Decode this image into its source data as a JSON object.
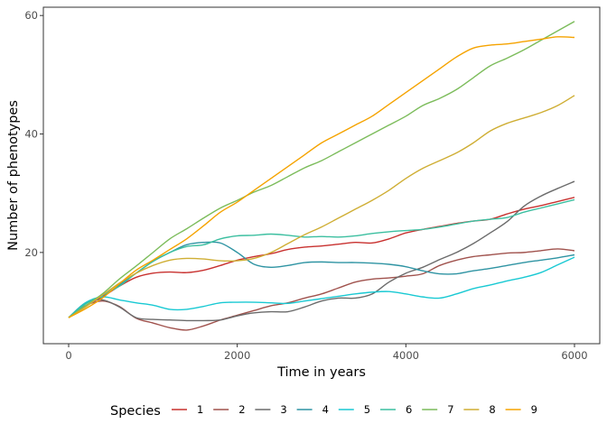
{
  "chart_data": {
    "type": "line",
    "xlabel": "Time in years",
    "ylabel": "Number of phenotypes",
    "xlim": [
      -300,
      6300
    ],
    "ylim": [
      4.6,
      61.4
    ],
    "xticks": [
      0,
      2000,
      4000,
      6000
    ],
    "yticks": [
      20,
      40,
      60
    ],
    "xtick_labels": [
      "0",
      "2000",
      "4000",
      "6000"
    ],
    "ytick_labels": [
      "20",
      "40",
      "60"
    ],
    "grid": false,
    "legend_title": "Species",
    "legend_position": "bottom",
    "x": [
      0,
      200,
      400,
      600,
      800,
      1000,
      1200,
      1400,
      1600,
      1800,
      2000,
      2200,
      2400,
      2600,
      2800,
      3000,
      3200,
      3400,
      3600,
      3800,
      4000,
      4200,
      4400,
      4600,
      4800,
      5000,
      5200,
      5400,
      5600,
      5800,
      6000
    ],
    "series": [
      {
        "name": "1",
        "color": "#c8312f",
        "values": [
          9,
          11,
          12.5,
          14.3,
          15.8,
          16.5,
          16.7,
          16.6,
          17.0,
          17.8,
          18.7,
          19.3,
          19.8,
          20.5,
          20.9,
          21.1,
          21.4,
          21.7,
          21.6,
          22.3,
          23.3,
          23.9,
          24.4,
          24.9,
          25.3,
          25.6,
          26.5,
          27.3,
          27.9,
          28.6,
          29.3
        ]
      },
      {
        "name": "2",
        "color": "#a0524d",
        "values": [
          9,
          11,
          11.8,
          10.9,
          8.9,
          8.1,
          7.3,
          6.9,
          7.6,
          8.6,
          9.4,
          10.2,
          11.0,
          11.5,
          12.3,
          13.0,
          14.0,
          15.0,
          15.5,
          15.7,
          16.0,
          16.4,
          17.8,
          18.7,
          19.3,
          19.6,
          19.9,
          20.0,
          20.3,
          20.6,
          20.3
        ]
      },
      {
        "name": "3",
        "color": "#6b6b6b",
        "values": [
          9,
          11.5,
          12.0,
          10.8,
          9.0,
          8.7,
          8.6,
          8.5,
          8.5,
          8.6,
          9.3,
          9.8,
          10.0,
          10.0,
          10.8,
          11.8,
          12.3,
          12.3,
          13.0,
          15.0,
          16.5,
          17.5,
          18.8,
          20.0,
          21.5,
          23.3,
          25.2,
          27.8,
          29.5,
          30.8,
          32.0
        ]
      },
      {
        "name": "4",
        "color": "#2f94a3",
        "values": [
          9,
          11.5,
          12.7,
          14.5,
          16.5,
          18.5,
          20.0,
          21.3,
          21.7,
          21.6,
          20.0,
          18.0,
          17.5,
          17.8,
          18.3,
          18.4,
          18.3,
          18.3,
          18.2,
          18.0,
          17.6,
          16.9,
          16.4,
          16.4,
          16.9,
          17.3,
          17.8,
          18.3,
          18.7,
          19.1,
          19.6
        ]
      },
      {
        "name": "5",
        "color": "#19c9d3",
        "values": [
          9,
          11.5,
          12.5,
          12.0,
          11.5,
          11.1,
          10.4,
          10.4,
          10.9,
          11.5,
          11.6,
          11.6,
          11.5,
          11.4,
          11.8,
          12.2,
          12.6,
          13.0,
          13.3,
          13.4,
          13.0,
          12.5,
          12.3,
          13.0,
          13.9,
          14.5,
          15.2,
          15.8,
          16.6,
          17.9,
          19.2
        ]
      },
      {
        "name": "6",
        "color": "#3cbfa0",
        "values": [
          9,
          11.3,
          12.8,
          14.3,
          16.5,
          18.5,
          20.0,
          21.0,
          21.3,
          22.3,
          22.8,
          22.9,
          23.1,
          22.9,
          22.6,
          22.7,
          22.6,
          22.8,
          23.2,
          23.5,
          23.7,
          23.9,
          24.3,
          24.8,
          25.3,
          25.6,
          25.9,
          26.8,
          27.5,
          28.2,
          28.9
        ]
      },
      {
        "name": "7",
        "color": "#7cbc5b",
        "values": [
          9,
          11,
          13,
          15.5,
          17.7,
          20.0,
          22.3,
          24.0,
          25.8,
          27.5,
          28.8,
          30.2,
          31.3,
          32.8,
          34.3,
          35.5,
          37.0,
          38.5,
          40.0,
          41.5,
          43.0,
          44.8,
          46.0,
          47.5,
          49.5,
          51.5,
          52.8,
          54.2,
          55.8,
          57.4,
          59.0
        ]
      },
      {
        "name": "8",
        "color": "#cfae34",
        "values": [
          9,
          10.8,
          12.8,
          14.8,
          16.5,
          17.8,
          18.7,
          19.0,
          18.9,
          18.6,
          18.6,
          19.0,
          20.0,
          21.5,
          23.0,
          24.3,
          25.8,
          27.3,
          28.8,
          30.5,
          32.5,
          34.2,
          35.5,
          36.8,
          38.5,
          40.5,
          41.8,
          42.7,
          43.6,
          44.8,
          46.5
        ]
      },
      {
        "name": "9",
        "color": "#f5a300",
        "values": [
          9,
          10.5,
          12.3,
          14.7,
          17.0,
          18.7,
          20.5,
          22.3,
          24.5,
          26.8,
          28.5,
          30.5,
          32.5,
          34.5,
          36.5,
          38.5,
          40.0,
          41.5,
          43.0,
          45.0,
          47.0,
          49.0,
          51.0,
          53.0,
          54.5,
          55.0,
          55.2,
          55.6,
          56.0,
          56.4,
          56.3
        ]
      }
    ]
  }
}
